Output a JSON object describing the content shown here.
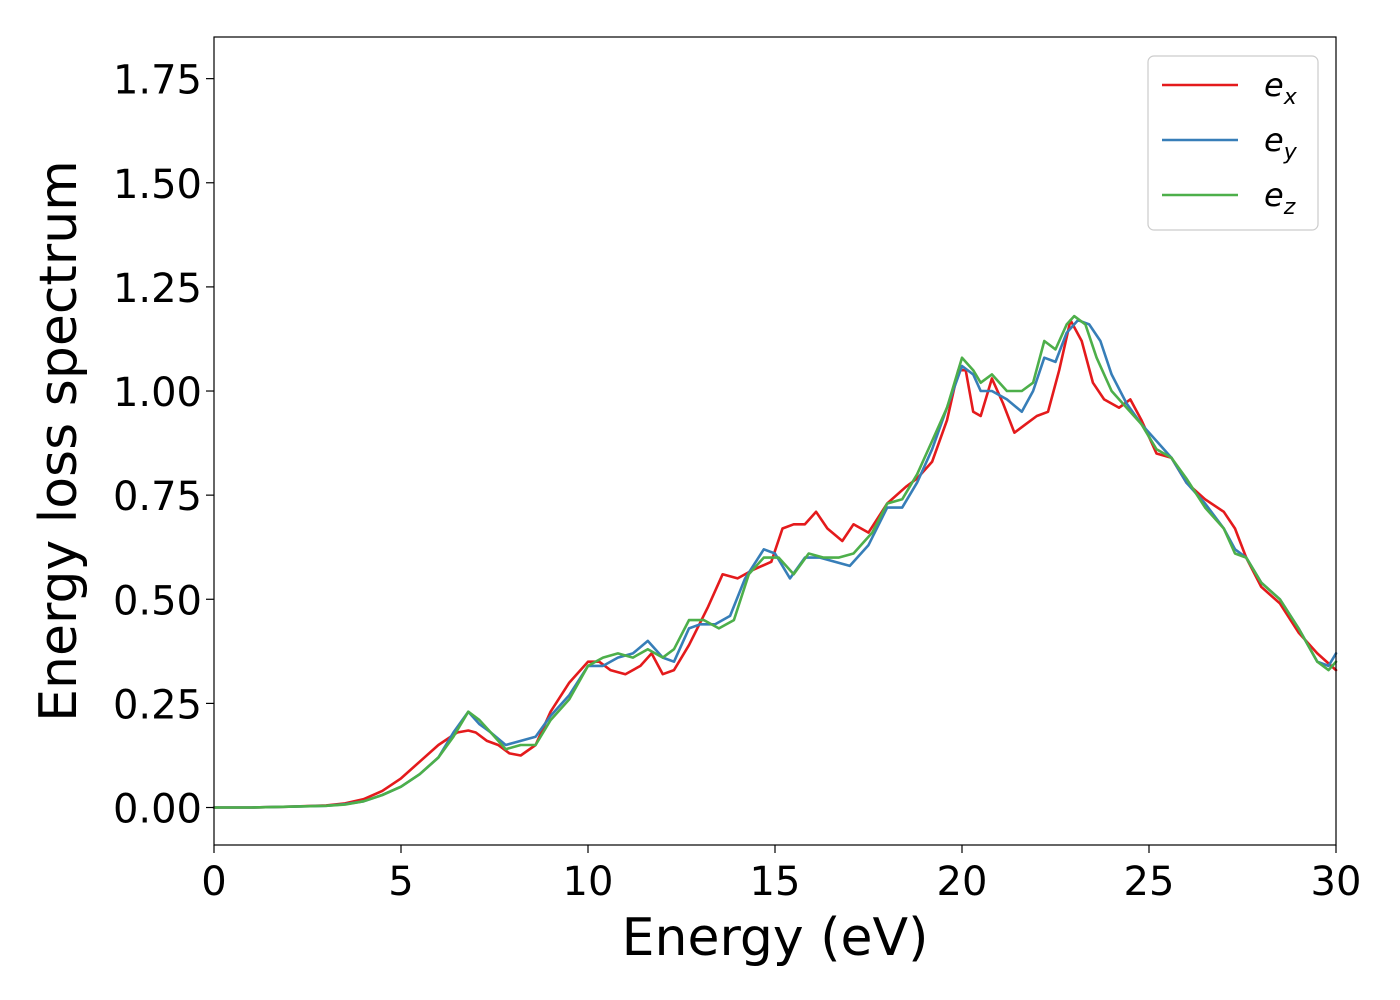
{
  "chart_data": {
    "type": "line",
    "title": "",
    "xlabel": "Energy (eV)",
    "ylabel": "Energy loss spectrum",
    "xlim": [
      0,
      30
    ],
    "ylim": [
      -0.09,
      1.85
    ],
    "xticks": [
      0,
      5,
      10,
      15,
      20,
      25,
      30
    ],
    "xtick_labels": [
      "0",
      "5",
      "10",
      "15",
      "20",
      "25",
      "30"
    ],
    "yticks": [
      0.0,
      0.25,
      0.5,
      0.75,
      1.0,
      1.25,
      1.5,
      1.75
    ],
    "ytick_labels": [
      "0.00",
      "0.25",
      "0.50",
      "0.75",
      "1.00",
      "1.25",
      "1.50",
      "1.75"
    ],
    "grid": false,
    "legend_position": "top-right",
    "series": [
      {
        "name": "e_x",
        "legend_base": "e",
        "legend_sub": "x",
        "color": "#e41a1c",
        "points": [
          [
            0,
            0
          ],
          [
            1,
            0
          ],
          [
            2,
            0.002
          ],
          [
            3,
            0.005
          ],
          [
            3.5,
            0.01
          ],
          [
            4,
            0.02
          ],
          [
            4.5,
            0.04
          ],
          [
            5,
            0.07
          ],
          [
            5.5,
            0.11
          ],
          [
            6,
            0.15
          ],
          [
            6.5,
            0.18
          ],
          [
            6.8,
            0.185
          ],
          [
            7,
            0.18
          ],
          [
            7.3,
            0.16
          ],
          [
            7.6,
            0.15
          ],
          [
            7.9,
            0.13
          ],
          [
            8.2,
            0.125
          ],
          [
            8.6,
            0.15
          ],
          [
            9,
            0.23
          ],
          [
            9.5,
            0.3
          ],
          [
            10,
            0.35
          ],
          [
            10.3,
            0.35
          ],
          [
            10.6,
            0.33
          ],
          [
            11,
            0.32
          ],
          [
            11.4,
            0.34
          ],
          [
            11.7,
            0.37
          ],
          [
            12,
            0.32
          ],
          [
            12.3,
            0.33
          ],
          [
            12.7,
            0.39
          ],
          [
            13.2,
            0.48
          ],
          [
            13.6,
            0.56
          ],
          [
            14,
            0.55
          ],
          [
            14.4,
            0.57
          ],
          [
            14.9,
            0.59
          ],
          [
            15.2,
            0.67
          ],
          [
            15.5,
            0.68
          ],
          [
            15.8,
            0.68
          ],
          [
            16.1,
            0.71
          ],
          [
            16.4,
            0.67
          ],
          [
            16.8,
            0.64
          ],
          [
            17.1,
            0.68
          ],
          [
            17.5,
            0.66
          ],
          [
            18,
            0.73
          ],
          [
            18.5,
            0.77
          ],
          [
            18.8,
            0.79
          ],
          [
            19.2,
            0.83
          ],
          [
            19.6,
            0.93
          ],
          [
            19.9,
            1.05
          ],
          [
            20.1,
            1.05
          ],
          [
            20.3,
            0.95
          ],
          [
            20.5,
            0.94
          ],
          [
            20.8,
            1.03
          ],
          [
            21.1,
            0.97
          ],
          [
            21.4,
            0.9
          ],
          [
            21.7,
            0.92
          ],
          [
            22,
            0.94
          ],
          [
            22.3,
            0.95
          ],
          [
            22.6,
            1.05
          ],
          [
            22.9,
            1.17
          ],
          [
            23.2,
            1.12
          ],
          [
            23.5,
            1.02
          ],
          [
            23.8,
            0.98
          ],
          [
            24.2,
            0.96
          ],
          [
            24.5,
            0.98
          ],
          [
            24.8,
            0.93
          ],
          [
            25.2,
            0.85
          ],
          [
            25.6,
            0.84
          ],
          [
            26,
            0.78
          ],
          [
            26.5,
            0.74
          ],
          [
            27,
            0.71
          ],
          [
            27.3,
            0.67
          ],
          [
            27.6,
            0.6
          ],
          [
            28,
            0.53
          ],
          [
            28.5,
            0.49
          ],
          [
            29,
            0.42
          ],
          [
            29.5,
            0.37
          ],
          [
            30,
            0.33
          ]
        ]
      },
      {
        "name": "e_y",
        "legend_base": "e",
        "legend_sub": "y",
        "color": "#377eb8",
        "points": [
          [
            0,
            0
          ],
          [
            1,
            0
          ],
          [
            2,
            0.002
          ],
          [
            3,
            0.004
          ],
          [
            3.5,
            0.008
          ],
          [
            4,
            0.015
          ],
          [
            4.5,
            0.03
          ],
          [
            5,
            0.05
          ],
          [
            5.5,
            0.08
          ],
          [
            6,
            0.12
          ],
          [
            6.4,
            0.18
          ],
          [
            6.8,
            0.23
          ],
          [
            7.1,
            0.2
          ],
          [
            7.4,
            0.18
          ],
          [
            7.8,
            0.15
          ],
          [
            8.2,
            0.16
          ],
          [
            8.6,
            0.17
          ],
          [
            9,
            0.22
          ],
          [
            9.5,
            0.27
          ],
          [
            10,
            0.34
          ],
          [
            10.4,
            0.34
          ],
          [
            10.8,
            0.36
          ],
          [
            11.2,
            0.37
          ],
          [
            11.6,
            0.4
          ],
          [
            12,
            0.36
          ],
          [
            12.3,
            0.35
          ],
          [
            12.7,
            0.43
          ],
          [
            13,
            0.44
          ],
          [
            13.4,
            0.44
          ],
          [
            13.8,
            0.46
          ],
          [
            14.2,
            0.55
          ],
          [
            14.7,
            0.62
          ],
          [
            15,
            0.61
          ],
          [
            15.4,
            0.55
          ],
          [
            15.8,
            0.6
          ],
          [
            16.2,
            0.6
          ],
          [
            16.6,
            0.59
          ],
          [
            17,
            0.58
          ],
          [
            17.5,
            0.63
          ],
          [
            18,
            0.72
          ],
          [
            18.4,
            0.72
          ],
          [
            18.8,
            0.78
          ],
          [
            19.2,
            0.86
          ],
          [
            19.6,
            0.96
          ],
          [
            20,
            1.06
          ],
          [
            20.3,
            1.04
          ],
          [
            20.5,
            1.0
          ],
          [
            20.8,
            1.0
          ],
          [
            21.2,
            0.98
          ],
          [
            21.6,
            0.95
          ],
          [
            21.9,
            1.0
          ],
          [
            22.2,
            1.08
          ],
          [
            22.5,
            1.07
          ],
          [
            22.8,
            1.14
          ],
          [
            23.1,
            1.17
          ],
          [
            23.4,
            1.16
          ],
          [
            23.7,
            1.12
          ],
          [
            24,
            1.04
          ],
          [
            24.4,
            0.97
          ],
          [
            24.8,
            0.92
          ],
          [
            25.2,
            0.88
          ],
          [
            25.6,
            0.84
          ],
          [
            26,
            0.78
          ],
          [
            26.5,
            0.73
          ],
          [
            27,
            0.67
          ],
          [
            27.3,
            0.62
          ],
          [
            27.6,
            0.6
          ],
          [
            28,
            0.54
          ],
          [
            28.5,
            0.5
          ],
          [
            29,
            0.43
          ],
          [
            29.5,
            0.35
          ],
          [
            29.8,
            0.34
          ],
          [
            30,
            0.37
          ]
        ]
      },
      {
        "name": "e_z",
        "legend_base": "e",
        "legend_sub": "z",
        "color": "#4daf4a",
        "points": [
          [
            0,
            0
          ],
          [
            1,
            0
          ],
          [
            2,
            0.002
          ],
          [
            3,
            0.004
          ],
          [
            3.5,
            0.007
          ],
          [
            4,
            0.015
          ],
          [
            4.5,
            0.03
          ],
          [
            5,
            0.05
          ],
          [
            5.5,
            0.08
          ],
          [
            6,
            0.12
          ],
          [
            6.4,
            0.17
          ],
          [
            6.8,
            0.23
          ],
          [
            7.1,
            0.21
          ],
          [
            7.4,
            0.18
          ],
          [
            7.8,
            0.14
          ],
          [
            8.2,
            0.15
          ],
          [
            8.6,
            0.15
          ],
          [
            9,
            0.21
          ],
          [
            9.5,
            0.26
          ],
          [
            10,
            0.34
          ],
          [
            10.4,
            0.36
          ],
          [
            10.8,
            0.37
          ],
          [
            11.2,
            0.36
          ],
          [
            11.6,
            0.38
          ],
          [
            12,
            0.36
          ],
          [
            12.3,
            0.38
          ],
          [
            12.7,
            0.45
          ],
          [
            13.1,
            0.45
          ],
          [
            13.5,
            0.43
          ],
          [
            13.9,
            0.45
          ],
          [
            14.3,
            0.56
          ],
          [
            14.7,
            0.6
          ],
          [
            15.1,
            0.6
          ],
          [
            15.5,
            0.56
          ],
          [
            15.9,
            0.61
          ],
          [
            16.3,
            0.6
          ],
          [
            16.7,
            0.6
          ],
          [
            17.1,
            0.61
          ],
          [
            17.6,
            0.66
          ],
          [
            18,
            0.73
          ],
          [
            18.4,
            0.74
          ],
          [
            18.8,
            0.8
          ],
          [
            19.2,
            0.88
          ],
          [
            19.6,
            0.96
          ],
          [
            20,
            1.08
          ],
          [
            20.3,
            1.05
          ],
          [
            20.5,
            1.02
          ],
          [
            20.8,
            1.04
          ],
          [
            21.2,
            1.0
          ],
          [
            21.6,
            1.0
          ],
          [
            21.9,
            1.02
          ],
          [
            22.2,
            1.12
          ],
          [
            22.5,
            1.1
          ],
          [
            22.8,
            1.16
          ],
          [
            23,
            1.18
          ],
          [
            23.3,
            1.16
          ],
          [
            23.6,
            1.08
          ],
          [
            24,
            1.0
          ],
          [
            24.4,
            0.96
          ],
          [
            24.8,
            0.92
          ],
          [
            25.2,
            0.86
          ],
          [
            25.6,
            0.84
          ],
          [
            26,
            0.79
          ],
          [
            26.5,
            0.72
          ],
          [
            27,
            0.67
          ],
          [
            27.3,
            0.61
          ],
          [
            27.6,
            0.6
          ],
          [
            28,
            0.54
          ],
          [
            28.5,
            0.5
          ],
          [
            29,
            0.43
          ],
          [
            29.5,
            0.35
          ],
          [
            29.8,
            0.33
          ],
          [
            30,
            0.35
          ]
        ]
      }
    ]
  }
}
